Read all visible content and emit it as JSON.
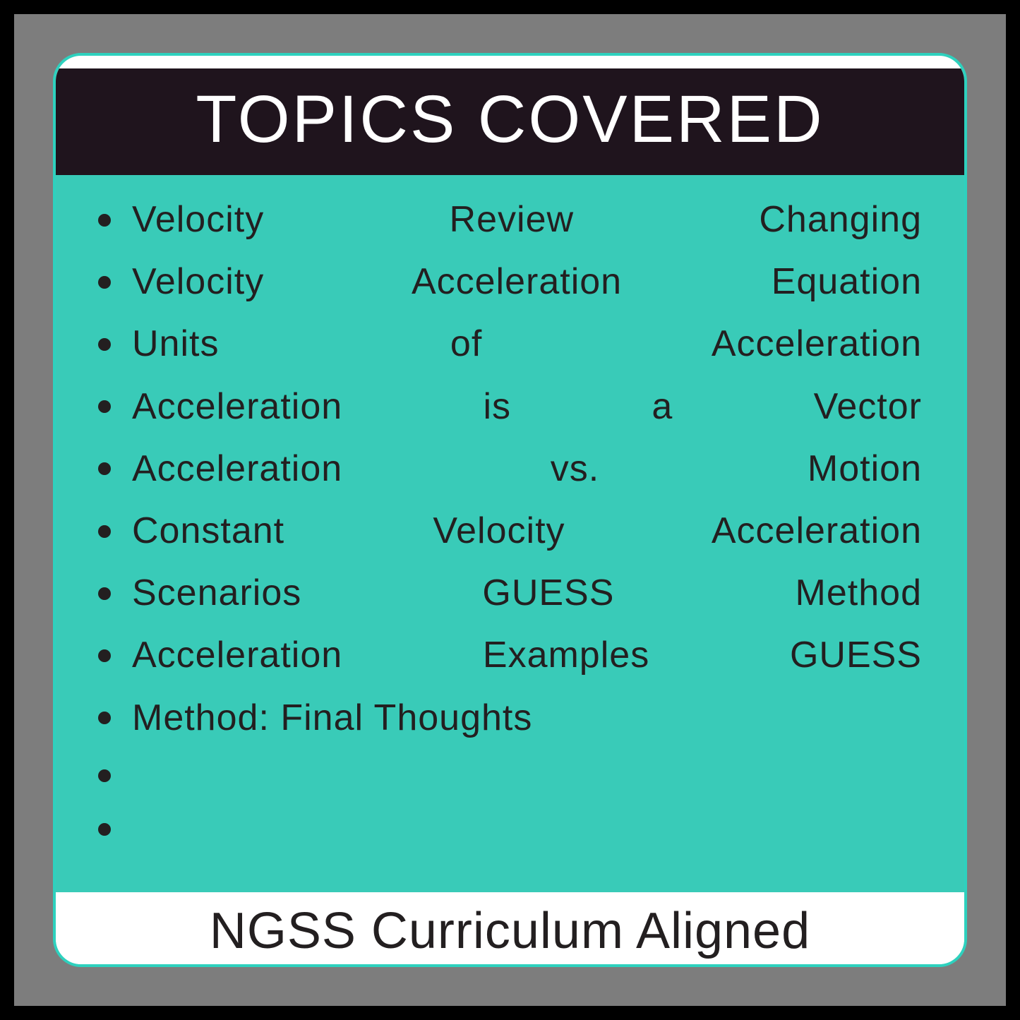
{
  "colors": {
    "outer_border": "#000000",
    "grey_frame": "#7d7d7d",
    "teal_bg": "#39cbb8",
    "teal_accent": "#2ed1be",
    "header_bg": "#1f141d",
    "header_text": "#ffffff",
    "text": "#231f20",
    "bullet": "#231f20"
  },
  "typography": {
    "header_fontsize": 95,
    "item_fontsize": 52,
    "footer_fontsize": 72
  },
  "header": {
    "title": "TOPICS COVERED"
  },
  "topics": [
    {
      "text": "Velocity Review Changing",
      "justified": true
    },
    {
      "text": "Velocity Acceleration Equation",
      "justified": true
    },
    {
      "text": "Units of Acceleration",
      "justified": true
    },
    {
      "text": "Acceleration is a Vector",
      "justified": true
    },
    {
      "text": "Acceleration vs. Motion",
      "justified": true
    },
    {
      "text": "Constant Velocity Acceleration",
      "justified": true
    },
    {
      "text": "Scenarios GUESS Method",
      "justified": true
    },
    {
      "text": "Acceleration Examples GUESS",
      "justified": true
    },
    {
      "text": "Method: Final Thoughts",
      "justified": false
    },
    {
      "text": "",
      "justified": false
    },
    {
      "text": "",
      "justified": false
    }
  ],
  "footer": {
    "text": "NGSS Curriculum Aligned"
  }
}
